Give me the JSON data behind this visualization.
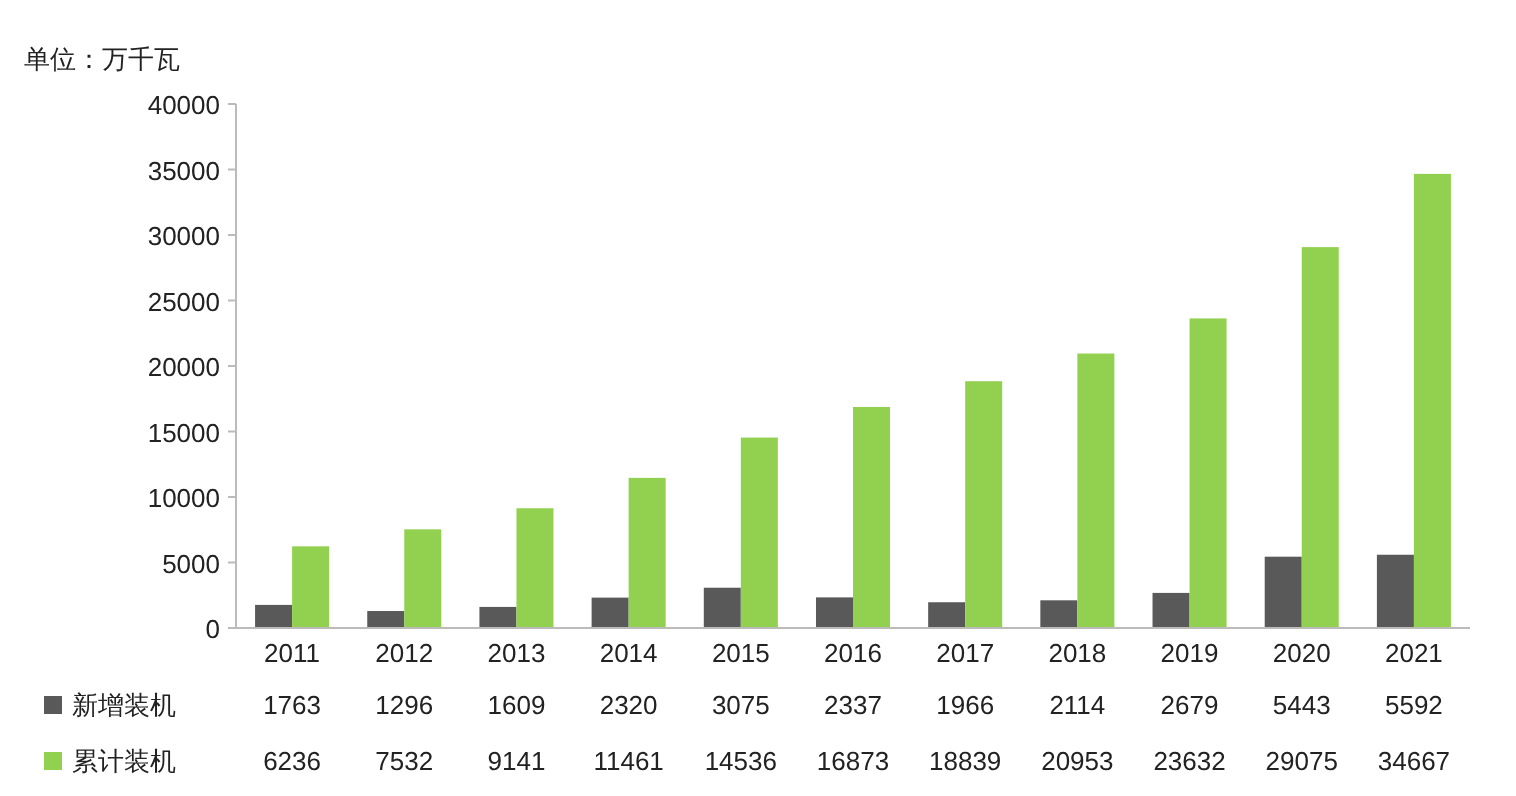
{
  "chart_data": {
    "type": "bar",
    "ylabel": "单位：万千瓦",
    "categories": [
      "2011",
      "2012",
      "2013",
      "2014",
      "2015",
      "2016",
      "2017",
      "2018",
      "2019",
      "2020",
      "2021"
    ],
    "series": [
      {
        "name": "新增装机",
        "color": "#595959",
        "values": [
          1763,
          1296,
          1609,
          2320,
          3075,
          2337,
          1966,
          2114,
          2679,
          5443,
          5592
        ]
      },
      {
        "name": "累计装机",
        "color": "#92d050",
        "values": [
          6236,
          7532,
          9141,
          11461,
          14536,
          16873,
          18839,
          20953,
          23632,
          29075,
          34667
        ]
      }
    ],
    "ylim": [
      0,
      40000
    ],
    "yticks": [
      0,
      5000,
      10000,
      15000,
      20000,
      25000,
      30000,
      35000,
      40000
    ],
    "data_labels": true,
    "legend": "bottom"
  }
}
